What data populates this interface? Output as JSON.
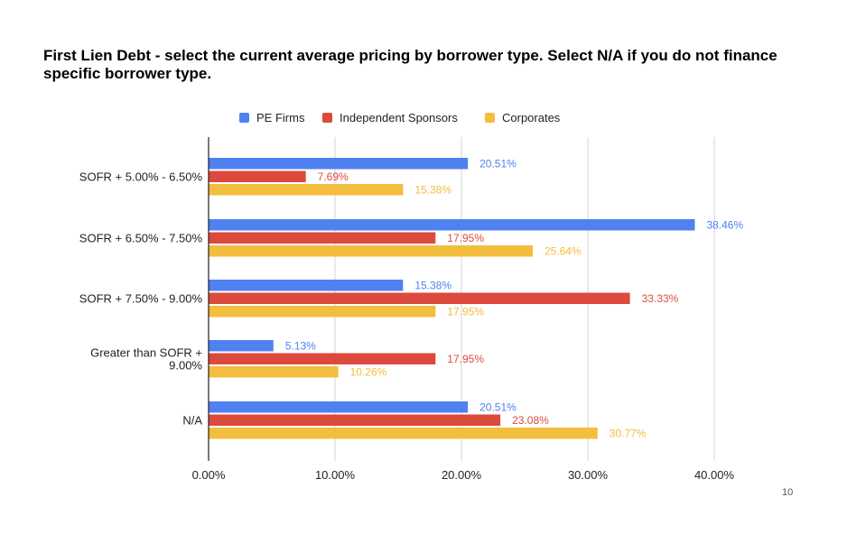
{
  "title": "First Lien Debt - select the current average pricing by borrower type. Select N/A if you do not finance specific borrower type.",
  "page_number": "10",
  "chart_data": {
    "type": "bar",
    "orientation": "horizontal",
    "title": "First Lien Debt - select the current average pricing by borrower type. Select N/A if you do not finance specific borrower type.",
    "categories": [
      [
        "SOFR + 5.00% - 6.50%"
      ],
      [
        "SOFR + 6.50% - 7.50%"
      ],
      [
        "SOFR + 7.50% - 9.00%"
      ],
      [
        "Greater than SOFR +",
        "9.00%"
      ],
      [
        "N/A"
      ]
    ],
    "series": [
      {
        "name": "PE Firms",
        "color": "#4f81f0",
        "values": [
          20.51,
          38.46,
          15.38,
          5.13,
          20.51
        ]
      },
      {
        "name": "Independent Sponsors",
        "color": "#dc4a3d",
        "values": [
          7.69,
          17.95,
          33.33,
          17.95,
          23.08
        ]
      },
      {
        "name": "Corporates",
        "color": "#f3bd3e",
        "values": [
          15.38,
          25.64,
          17.95,
          10.26,
          30.77
        ]
      }
    ],
    "xlim": [
      0,
      40
    ],
    "xticks": [
      0,
      10,
      20,
      30,
      40
    ],
    "tick_labels": [
      "0.00%",
      "10.00%",
      "20.00%",
      "30.00%",
      "40.00%"
    ],
    "value_suffix": "%",
    "grid": true,
    "legend_position": "top"
  }
}
